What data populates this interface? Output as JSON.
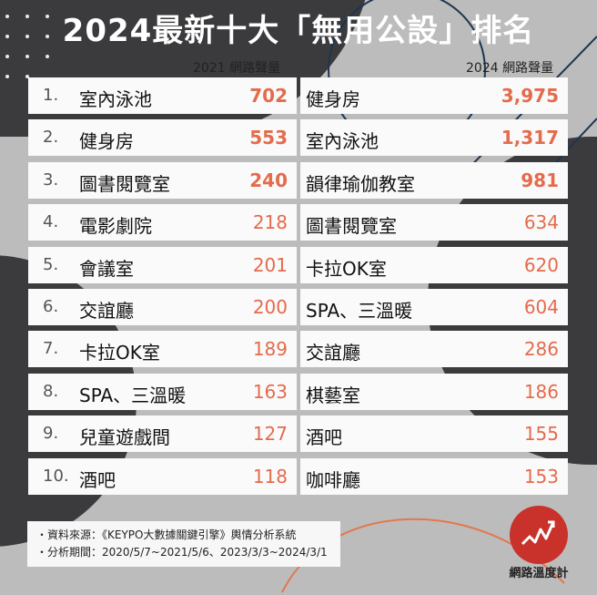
{
  "title": "2024最新十大「無用公設」排名",
  "left_header": "2021 網路聲量",
  "right_header": "2024 網路聲量",
  "left": [
    {
      "rank": "1.",
      "name": "室內泳池",
      "value": "702"
    },
    {
      "rank": "2.",
      "name": "健身房",
      "value": "553"
    },
    {
      "rank": "3.",
      "name": "圖書閱覽室",
      "value": "240"
    },
    {
      "rank": "4.",
      "name": "電影劇院",
      "value": "218"
    },
    {
      "rank": "5.",
      "name": "會議室",
      "value": "201"
    },
    {
      "rank": "6.",
      "name": "交誼廳",
      "value": "200"
    },
    {
      "rank": "7.",
      "name": "卡拉OK室",
      "value": "189"
    },
    {
      "rank": "8.",
      "name": "SPA、三溫暖",
      "value": "163"
    },
    {
      "rank": "9.",
      "name": "兒童遊戲間",
      "value": "127"
    },
    {
      "rank": "10.",
      "name": "酒吧",
      "value": "118"
    }
  ],
  "right": [
    {
      "name": "健身房",
      "value": "3,975"
    },
    {
      "name": "室內泳池",
      "value": "1,317"
    },
    {
      "name": "韻律瑜伽教室",
      "value": "981"
    },
    {
      "name": "圖書閱覽室",
      "value": "634"
    },
    {
      "name": "卡拉OK室",
      "value": "620"
    },
    {
      "name": "SPA、三溫暖",
      "value": "604"
    },
    {
      "name": "交誼廳",
      "value": "286"
    },
    {
      "name": "棋藝室",
      "value": "186"
    },
    {
      "name": "酒吧",
      "value": "155"
    },
    {
      "name": "咖啡廳",
      "value": "153"
    }
  ],
  "source_line": "・資料來源：《KEYPO大數據關鍵引擎》輿情分析系統",
  "period_line": "・分析期間：2020/5/7~2021/5/6、2023/3/3~2024/3/1",
  "logo_text": "網路溫度計",
  "colors": {
    "accent": "#e46b4c",
    "dark": "#3d3d3f",
    "logo": "#c8322a"
  }
}
